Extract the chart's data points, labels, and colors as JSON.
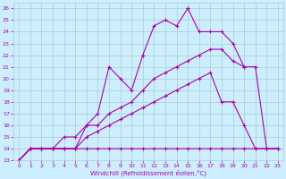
{
  "xlabel": "Windchill (Refroidissement éolien,°C)",
  "bg_color": "#cceeff",
  "grid_color": "#aacccc",
  "line_color": "#aa00aa",
  "xlim": [
    -0.5,
    23.5
  ],
  "ylim": [
    13,
    26.5
  ],
  "xticks": [
    0,
    1,
    2,
    3,
    4,
    5,
    6,
    7,
    8,
    9,
    10,
    11,
    12,
    13,
    14,
    15,
    16,
    17,
    18,
    19,
    20,
    21,
    22,
    23
  ],
  "yticks": [
    13,
    14,
    15,
    16,
    17,
    18,
    19,
    20,
    21,
    22,
    23,
    24,
    25,
    26
  ],
  "lines": [
    {
      "x": [
        0,
        1,
        2,
        3,
        4,
        5,
        6,
        7,
        8,
        9,
        10,
        11,
        12,
        13,
        14,
        15,
        16,
        17,
        18,
        19,
        20,
        21,
        22,
        23
      ],
      "y": [
        13,
        14,
        14,
        14,
        14,
        14,
        14,
        14,
        14,
        14,
        14,
        14,
        14,
        14,
        14,
        14,
        14,
        14,
        14,
        14,
        14,
        14,
        14,
        14
      ],
      "marker": true
    },
    {
      "x": [
        0,
        1,
        2,
        3,
        4,
        5,
        6,
        7,
        8,
        9,
        10,
        11,
        12,
        13,
        14,
        15,
        16,
        17,
        18,
        19,
        20,
        21,
        22,
        23
      ],
      "y": [
        13,
        14,
        14,
        14,
        14,
        14,
        15,
        15.5,
        16,
        16.5,
        17,
        17.5,
        18,
        18.5,
        19,
        19.5,
        20,
        20.5,
        18,
        18,
        16,
        14,
        14,
        14
      ],
      "marker": true
    },
    {
      "x": [
        0,
        1,
        2,
        3,
        4,
        5,
        6,
        7,
        8,
        9,
        10,
        11,
        12,
        13,
        14,
        15,
        16,
        17,
        18,
        19,
        20,
        21,
        22,
        23
      ],
      "y": [
        13,
        14,
        14,
        14,
        15,
        15,
        16,
        16,
        17,
        17.5,
        18,
        19,
        20,
        20.5,
        21,
        21.5,
        22,
        22.5,
        22.5,
        21.5,
        21,
        21,
        14,
        14
      ],
      "marker": true
    },
    {
      "x": [
        0,
        1,
        2,
        3,
        4,
        5,
        6,
        7,
        8,
        9,
        10,
        11,
        12,
        13,
        14,
        15,
        16,
        17,
        18,
        19,
        20
      ],
      "y": [
        13,
        14,
        14,
        14,
        14,
        14,
        16,
        17,
        21,
        20,
        19,
        22,
        24.5,
        25,
        24.5,
        26,
        24,
        24,
        24,
        23,
        21
      ],
      "marker": true
    }
  ]
}
